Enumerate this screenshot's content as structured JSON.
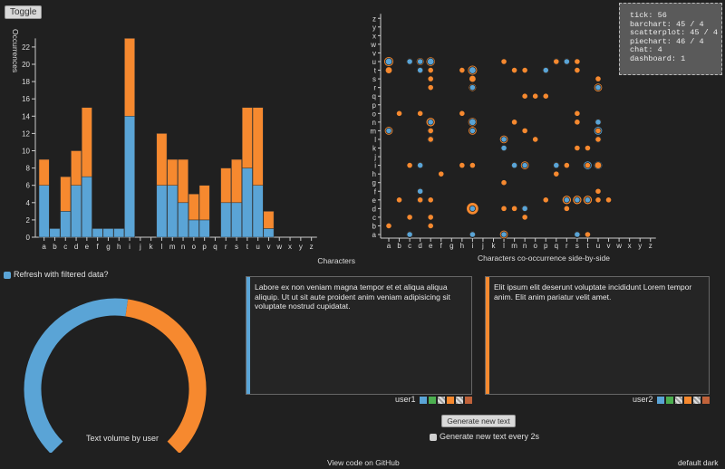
{
  "toggle_label": "Toggle",
  "colors": {
    "user1": "#5aa4d6",
    "user2": "#f6892f",
    "bg": "#202020",
    "axis": "#cccccc"
  },
  "stats": [
    "tick: 56",
    "barchart: 45 / 4",
    "scatterplot: 45 / 4",
    "piechart: 46 / 4",
    "chat: 4",
    "dashboard: 1"
  ],
  "refresh_label": "Refresh with filtered data?",
  "gauge_caption": "Text volume by user",
  "user1": {
    "name": "user1",
    "text": "Labore ex non veniam magna tempor et et aliqua aliqua aliquip. Ut ut sit aute proident anim veniam adipisicing sit voluptate nostrud cupidatat."
  },
  "user2": {
    "name": "user2",
    "text": "Elit ipsum elit deserunt voluptate incididunt Lorem tempor anim. Elit anim pariatur velit amet."
  },
  "swatch_colors": [
    "#5aa4d6",
    "#4caf50",
    "#cccccc",
    "#f6892f",
    "#cccccc",
    "#c0623a"
  ],
  "generate_label": "Generate new text",
  "auto_label": "Generate new text every 2s",
  "github_link": "View code on GitHub",
  "theme_default": "default",
  "theme_dark": "dark",
  "chart_data": [
    {
      "type": "bar",
      "ylabel": "Occurrences",
      "xlabel": "Characters",
      "ylim": [
        0,
        23
      ],
      "yticks": [
        0,
        2,
        4,
        6,
        8,
        10,
        12,
        14,
        16,
        18,
        20,
        22
      ],
      "categories": [
        "a",
        "b",
        "c",
        "d",
        "e",
        "f",
        "g",
        "h",
        "i",
        "j",
        "k",
        "l",
        "m",
        "n",
        "o",
        "p",
        "q",
        "r",
        "s",
        "t",
        "u",
        "v",
        "w",
        "x",
        "y",
        "z"
      ],
      "series": [
        {
          "name": "user1",
          "values": [
            6,
            1,
            3,
            6,
            7,
            1,
            1,
            1,
            14,
            0,
            0,
            6,
            6,
            4,
            2,
            2,
            0,
            4,
            4,
            8,
            6,
            1,
            0,
            0,
            0,
            0
          ]
        },
        {
          "name": "user2",
          "values": [
            3,
            0,
            4,
            4,
            8,
            0,
            0,
            0,
            9,
            0,
            0,
            6,
            3,
            5,
            3,
            4,
            0,
            4,
            5,
            7,
            9,
            2,
            0,
            0,
            0,
            0
          ]
        }
      ]
    },
    {
      "type": "scatter",
      "xlabel": "Characters co-occurrence side-by-side",
      "x_categories": [
        "a",
        "b",
        "c",
        "d",
        "e",
        "f",
        "g",
        "h",
        "i",
        "j",
        "k",
        "l",
        "m",
        "n",
        "o",
        "p",
        "q",
        "r",
        "s",
        "t",
        "u",
        "v",
        "w",
        "x",
        "y",
        "z"
      ],
      "y_categories": [
        "a",
        "b",
        "c",
        "d",
        "e",
        "f",
        "g",
        "h",
        "i",
        "j",
        "k",
        "l",
        "m",
        "n",
        "o",
        "p",
        "q",
        "r",
        "s",
        "t",
        "u",
        "v",
        "w",
        "x",
        "y",
        "z"
      ],
      "points": [
        [
          "a",
          "u",
          2,
          6
        ],
        [
          "a",
          "t",
          2,
          2
        ],
        [
          "a",
          "m",
          1,
          4
        ],
        [
          "a",
          "b",
          1,
          1
        ],
        [
          "b",
          "o",
          1,
          1
        ],
        [
          "b",
          "e",
          1,
          1
        ],
        [
          "c",
          "u",
          1,
          2
        ],
        [
          "c",
          "i",
          1,
          1
        ],
        [
          "c",
          "a",
          1,
          2
        ],
        [
          "c",
          "c",
          1,
          1
        ],
        [
          "d",
          "u",
          1,
          3
        ],
        [
          "d",
          "t",
          1,
          2
        ],
        [
          "d",
          "o",
          1,
          1
        ],
        [
          "d",
          "i",
          1,
          2
        ],
        [
          "d",
          "f",
          1,
          2
        ],
        [
          "d",
          "e",
          2,
          1
        ],
        [
          "e",
          "u",
          2,
          5
        ],
        [
          "e",
          "t",
          1,
          1
        ],
        [
          "e",
          "s",
          1,
          1
        ],
        [
          "e",
          "r",
          1,
          1
        ],
        [
          "e",
          "n",
          1,
          5
        ],
        [
          "e",
          "m",
          2,
          1
        ],
        [
          "e",
          "l",
          2,
          1
        ],
        [
          "e",
          "e",
          1,
          1
        ],
        [
          "e",
          "c",
          1,
          1
        ],
        [
          "e",
          "b",
          1,
          1
        ],
        [
          "f",
          "h",
          1,
          1
        ],
        [
          "h",
          "t",
          1,
          1
        ],
        [
          "h",
          "o",
          1,
          1
        ],
        [
          "h",
          "i",
          1,
          1
        ],
        [
          "i",
          "t",
          2,
          6
        ],
        [
          "i",
          "s",
          2,
          2
        ],
        [
          "i",
          "r",
          1,
          3
        ],
        [
          "i",
          "n",
          2,
          5
        ],
        [
          "i",
          "m",
          1,
          4
        ],
        [
          "i",
          "d",
          1,
          11
        ],
        [
          "i",
          "a",
          1,
          2
        ],
        [
          "i",
          "i",
          1,
          1
        ],
        [
          "l",
          "u",
          1,
          1
        ],
        [
          "l",
          "l",
          1,
          4
        ],
        [
          "l",
          "k",
          1,
          2
        ],
        [
          "l",
          "g",
          1,
          1
        ],
        [
          "l",
          "d",
          1,
          1
        ],
        [
          "l",
          "a",
          1,
          4
        ],
        [
          "m",
          "t",
          1,
          1
        ],
        [
          "m",
          "n",
          1,
          1
        ],
        [
          "m",
          "i",
          1,
          2
        ],
        [
          "m",
          "d",
          1,
          1
        ],
        [
          "n",
          "t",
          1,
          1
        ],
        [
          "n",
          "q",
          1,
          1
        ],
        [
          "n",
          "m",
          1,
          1
        ],
        [
          "n",
          "i",
          1,
          4
        ],
        [
          "n",
          "d",
          1,
          2
        ],
        [
          "n",
          "c",
          1,
          1
        ],
        [
          "o",
          "q",
          1,
          1
        ],
        [
          "o",
          "l",
          1,
          1
        ],
        [
          "p",
          "t",
          1,
          2
        ],
        [
          "p",
          "q",
          1,
          1
        ],
        [
          "p",
          "e",
          1,
          1
        ],
        [
          "q",
          "u",
          2,
          1
        ],
        [
          "q",
          "i",
          1,
          2
        ],
        [
          "q",
          "h",
          1,
          1
        ],
        [
          "r",
          "u",
          1,
          2
        ],
        [
          "r",
          "e",
          1,
          5
        ],
        [
          "r",
          "i",
          1,
          1
        ],
        [
          "r",
          "d",
          1,
          1
        ],
        [
          "s",
          "u",
          1,
          1
        ],
        [
          "s",
          "t",
          1,
          1
        ],
        [
          "s",
          "o",
          1,
          1
        ],
        [
          "s",
          "n",
          1,
          1
        ],
        [
          "s",
          "k",
          1,
          1
        ],
        [
          "s",
          "e",
          1,
          5
        ],
        [
          "s",
          "a",
          1,
          2
        ],
        [
          "t",
          "i",
          4,
          1
        ],
        [
          "t",
          "e",
          1,
          5
        ],
        [
          "t",
          "k",
          1,
          1
        ],
        [
          "t",
          "a",
          1,
          1
        ],
        [
          "u",
          "s",
          1,
          1
        ],
        [
          "u",
          "r",
          1,
          4
        ],
        [
          "u",
          "n",
          1,
          2
        ],
        [
          "u",
          "m",
          4,
          1
        ],
        [
          "u",
          "l",
          2,
          1
        ],
        [
          "u",
          "i",
          4,
          2
        ],
        [
          "u",
          "f",
          1,
          1
        ],
        [
          "u",
          "e",
          1,
          1
        ],
        [
          "v",
          "e",
          1,
          1
        ]
      ]
    },
    {
      "type": "pie",
      "title": "Text volume by user",
      "slices": [
        {
          "name": "user1",
          "value": 53
        },
        {
          "name": "user2",
          "value": 47
        }
      ]
    }
  ]
}
